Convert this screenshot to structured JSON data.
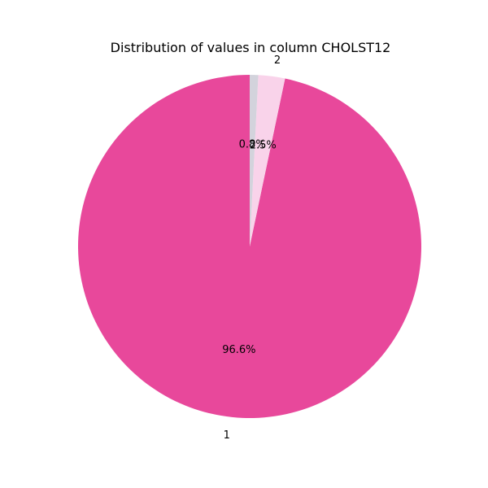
{
  "chart_data": {
    "type": "pie",
    "title": "Distribution of values in column CHOLST12",
    "categories": [
      "1",
      "2",
      ""
    ],
    "values": [
      96.6,
      2.5,
      0.8
    ],
    "percent_labels": [
      "96.6%",
      "2.5%",
      "0.8%"
    ],
    "colors": [
      "#e8489b",
      "#f9d3ea",
      "#d3d3dc"
    ],
    "start_angle_deg": 90,
    "direction": "counterclockwise",
    "legend": "none"
  }
}
